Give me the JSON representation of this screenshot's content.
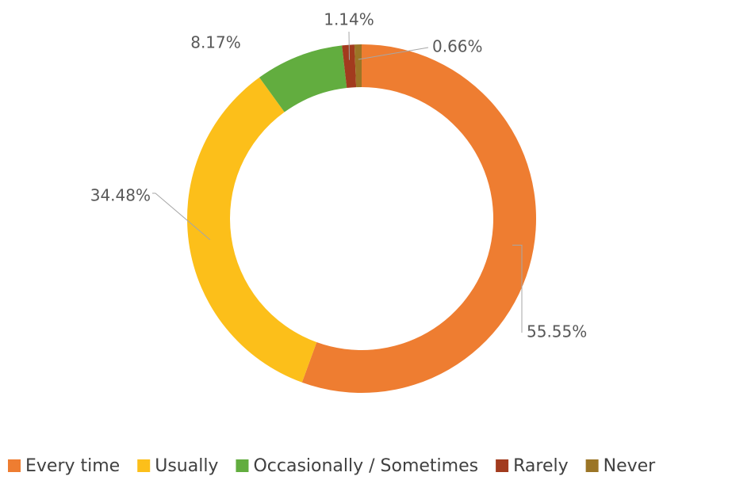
{
  "chart_data": {
    "type": "donut",
    "categories": [
      "Every time",
      "Usually",
      "Occasionally / Sometimes",
      "Rarely",
      "Never"
    ],
    "values": [
      55.55,
      34.48,
      8.17,
      1.14,
      0.66
    ],
    "value_labels": [
      "55.55%",
      "34.48%",
      "8.17%",
      "1.14%",
      "0.66%"
    ],
    "colors": [
      "#ee7d31",
      "#fcbf1a",
      "#62ad3f",
      "#a23b1e",
      "#9b7526"
    ],
    "legend": "bottom"
  }
}
